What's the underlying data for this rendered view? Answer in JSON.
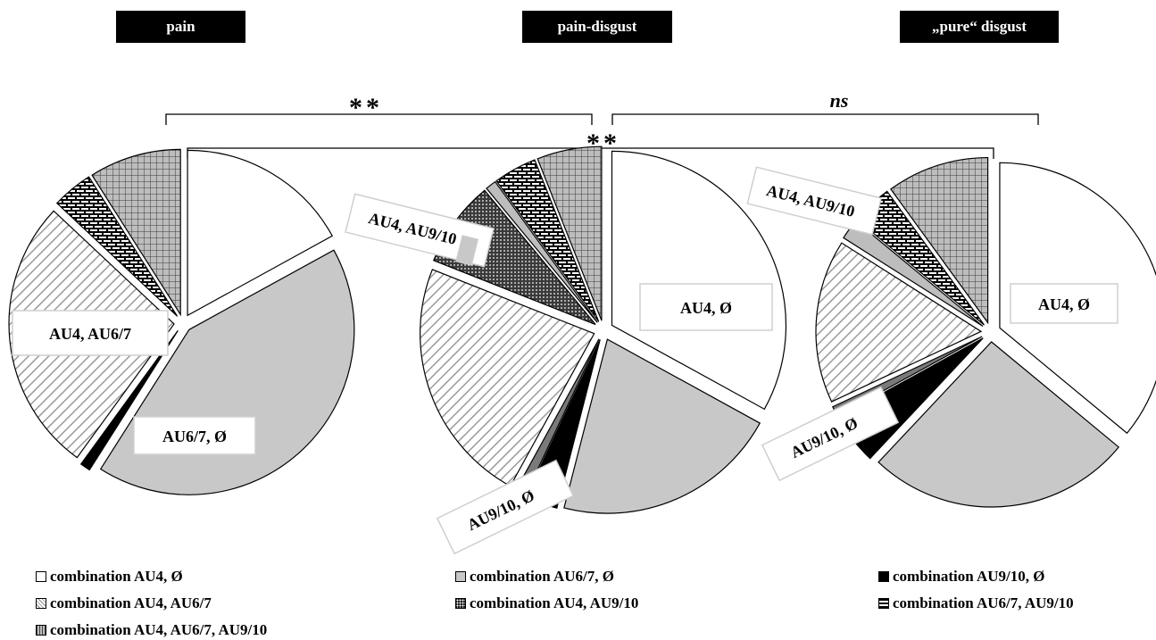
{
  "colors": {
    "au4_only": "#ffffff",
    "au67_only": "#c8c8c8",
    "au910_only": "#000000",
    "au4_au67": "hatched-diagonal",
    "au4_au910": "dotted-dark",
    "au67_au910": "brick-black",
    "au4_au67_au910": "grid-gray",
    "au4_au910_slice_small": "#bdbdbd",
    "au910_small_gray": "#7a7a7a"
  },
  "significance": {
    "left_bracket": "**",
    "right_bracket": "ns",
    "outer_bracket": "**"
  },
  "chart_data": [
    {
      "type": "pie",
      "title": "pain",
      "slices": [
        {
          "label": "combination AU4, Ø",
          "value": 17
        },
        {
          "label": "combination AU6/7, Ø",
          "value": 42
        },
        {
          "label": "combination AU9/10, Ø",
          "value": 1
        },
        {
          "label": "combination AU4, AU6/7",
          "value": 27
        },
        {
          "label": "combination AU6/7, AU9/10",
          "value": 4
        },
        {
          "label": "combination AU4, AU6/7, AU9/10",
          "value": 9
        }
      ],
      "annotations": [
        "AU4, AU6/7",
        "AU6/7, Ø"
      ]
    },
    {
      "type": "pie",
      "title": "pain-disgust",
      "slices": [
        {
          "label": "combination AU4, Ø",
          "value": 33
        },
        {
          "label": "combination AU6/7, Ø",
          "value": 21
        },
        {
          "label": "combination AU9/10, Ø",
          "value": 3
        },
        {
          "label": "AU9/10, Ø (gray)",
          "value": 1
        },
        {
          "label": "combination AU4, AU6/7",
          "value": 23
        },
        {
          "label": "combination AU4, AU9/10",
          "value": 8
        },
        {
          "label": "AU4, AU9/10 (gray)",
          "value": 1
        },
        {
          "label": "combination AU6/7, AU9/10",
          "value": 4
        },
        {
          "label": "combination AU4, AU6/7, AU9/10",
          "value": 6
        }
      ],
      "annotations": [
        "AU4, Ø",
        "AU4, AU9/10",
        "AU9/10, Ø"
      ]
    },
    {
      "type": "pie",
      "title": "„pure“ disgust",
      "slices": [
        {
          "label": "combination AU4, Ø",
          "value": 36
        },
        {
          "label": "combination AU6/7, Ø",
          "value": 26
        },
        {
          "label": "combination AU9/10, Ø",
          "value": 5
        },
        {
          "label": "AU9/10, Ø (gray)",
          "value": 1
        },
        {
          "label": "combination AU4, AU6/7",
          "value": 16
        },
        {
          "label": "AU4, AU9/10 (gray)",
          "value": 2
        },
        {
          "label": "combination AU6/7, AU9/10",
          "value": 4
        },
        {
          "label": "combination AU4, AU6/7, AU9/10",
          "value": 10
        }
      ],
      "annotations": [
        "AU4, Ø",
        "AU4, AU9/10",
        "AU9/10, Ø"
      ]
    }
  ],
  "legend": [
    {
      "key": "au4_only",
      "label": "combination AU4, Ø"
    },
    {
      "key": "au67_only",
      "label": "combination AU6/7, Ø"
    },
    {
      "key": "au910_only",
      "label": "combination AU9/10, Ø"
    },
    {
      "key": "au4_au67",
      "label": "combination AU4, AU6/7"
    },
    {
      "key": "au4_au910",
      "label": "combination AU4, AU9/10"
    },
    {
      "key": "au67_au910",
      "label": "combination AU6/7, AU9/10"
    },
    {
      "key": "au4_au67_au910",
      "label": "combination AU4, AU6/7, AU9/10"
    }
  ]
}
